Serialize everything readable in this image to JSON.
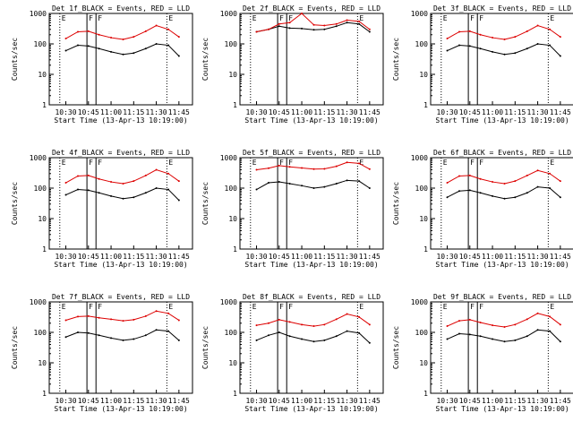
{
  "colors": {
    "events": "#000000",
    "lld": "#dd0000",
    "axis": "#000000",
    "background": "#ffffff"
  },
  "common": {
    "xlabel": "Start Time (13-Apr-13 10:19:00)",
    "ylabel": "Counts/sec",
    "xticks": [
      "10:30",
      "10:45",
      "11:00",
      "11:15",
      "11:30",
      "11:45"
    ],
    "yticks": [
      "1",
      "10",
      "100",
      "1000"
    ],
    "markers": [
      "E",
      "F",
      "F",
      "E"
    ]
  },
  "chart_data": [
    {
      "type": "line",
      "title": "Det 1f_BLACK = Events, RED = LLD",
      "xlabel": "Start Time (13-Apr-13 10:19:00)",
      "ylabel": "Counts/sec",
      "yscale": "log",
      "ylim": [
        1,
        1000
      ],
      "x": [
        "10:30",
        "10:38",
        "10:45",
        "10:52",
        "11:00",
        "11:08",
        "11:15",
        "11:23",
        "11:30",
        "11:38",
        "11:45"
      ],
      "series": [
        {
          "name": "Events",
          "values": [
            60,
            90,
            85,
            70,
            55,
            45,
            50,
            70,
            100,
            90,
            40
          ]
        },
        {
          "name": "LLD",
          "values": [
            150,
            250,
            260,
            200,
            160,
            140,
            170,
            260,
            400,
            300,
            170
          ]
        }
      ]
    },
    {
      "type": "line",
      "title": "Det 2f_BLACK = Events, RED = LLD",
      "xlabel": "Start Time (13-Apr-13 10:19:00)",
      "ylabel": "Counts/sec",
      "yscale": "log",
      "ylim": [
        1,
        1000
      ],
      "x": [
        "10:30",
        "10:38",
        "10:45",
        "10:52",
        "11:00",
        "11:08",
        "11:15",
        "11:23",
        "11:30",
        "11:38",
        "11:45"
      ],
      "series": [
        {
          "name": "Events",
          "values": [
            250,
            300,
            380,
            330,
            320,
            290,
            300,
            380,
            500,
            450,
            250
          ]
        },
        {
          "name": "LLD",
          "values": [
            250,
            300,
            450,
            500,
            1000,
            420,
            400,
            450,
            600,
            550,
            300
          ]
        }
      ]
    },
    {
      "type": "line",
      "title": "Det 3f_BLACK = Events, RED = LLD",
      "xlabel": "Start Time (13-Apr-13 10:19:00)",
      "ylabel": "Counts/sec",
      "yscale": "log",
      "ylim": [
        1,
        1000
      ],
      "x": [
        "10:30",
        "10:38",
        "10:45",
        "10:52",
        "11:00",
        "11:08",
        "11:15",
        "11:23",
        "11:30",
        "11:38",
        "11:45"
      ],
      "series": [
        {
          "name": "Events",
          "values": [
            60,
            90,
            85,
            70,
            55,
            45,
            50,
            70,
            100,
            90,
            40
          ]
        },
        {
          "name": "LLD",
          "values": [
            150,
            250,
            260,
            200,
            160,
            140,
            170,
            260,
            400,
            300,
            170
          ]
        }
      ]
    },
    {
      "type": "line",
      "title": "Det 4f_BLACK = Events, RED = LLD",
      "xlabel": "Start Time (13-Apr-13 10:19:00)",
      "ylabel": "Counts/sec",
      "yscale": "log",
      "ylim": [
        1,
        1000
      ],
      "x": [
        "10:30",
        "10:38",
        "10:45",
        "10:52",
        "11:00",
        "11:08",
        "11:15",
        "11:23",
        "11:30",
        "11:38",
        "11:45"
      ],
      "series": [
        {
          "name": "Events",
          "values": [
            60,
            90,
            85,
            70,
            55,
            45,
            50,
            70,
            100,
            90,
            40
          ]
        },
        {
          "name": "LLD",
          "values": [
            150,
            250,
            260,
            200,
            160,
            140,
            170,
            260,
            400,
            300,
            170
          ]
        }
      ]
    },
    {
      "type": "line",
      "title": "Det 5f_BLACK = Events, RED = LLD",
      "xlabel": "Start Time (13-Apr-13 10:19:00)",
      "ylabel": "Counts/sec",
      "yscale": "log",
      "ylim": [
        1,
        1000
      ],
      "x": [
        "10:30",
        "10:38",
        "10:45",
        "10:52",
        "11:00",
        "11:08",
        "11:15",
        "11:23",
        "11:30",
        "11:38",
        "11:45"
      ],
      "series": [
        {
          "name": "Events",
          "values": [
            90,
            150,
            160,
            140,
            120,
            100,
            110,
            140,
            180,
            170,
            100
          ]
        },
        {
          "name": "LLD",
          "values": [
            400,
            450,
            550,
            500,
            460,
            420,
            430,
            520,
            700,
            650,
            420
          ]
        }
      ]
    },
    {
      "type": "line",
      "title": "Det 6f_BLACK = Events, RED = LLD",
      "xlabel": "Start Time (13-Apr-13 10:19:00)",
      "ylabel": "Counts/sec",
      "yscale": "log",
      "ylim": [
        1,
        1000
      ],
      "x": [
        "10:30",
        "10:38",
        "10:45",
        "10:52",
        "11:00",
        "11:08",
        "11:15",
        "11:23",
        "11:30",
        "11:38",
        "11:45"
      ],
      "series": [
        {
          "name": "Events",
          "values": [
            50,
            80,
            85,
            70,
            55,
            45,
            50,
            70,
            110,
            100,
            50
          ]
        },
        {
          "name": "LLD",
          "values": [
            150,
            250,
            260,
            200,
            160,
            140,
            170,
            260,
            380,
            300,
            170
          ]
        }
      ]
    },
    {
      "type": "line",
      "title": "Det 7f_BLACK = Events, RED = LLD",
      "xlabel": "Start Time (13-Apr-13 10:19:00)",
      "ylabel": "Counts/sec",
      "yscale": "log",
      "ylim": [
        1,
        1000
      ],
      "x": [
        "10:30",
        "10:38",
        "10:45",
        "10:52",
        "11:00",
        "11:08",
        "11:15",
        "11:23",
        "11:30",
        "11:38",
        "11:45"
      ],
      "series": [
        {
          "name": "Events",
          "values": [
            70,
            100,
            95,
            80,
            65,
            55,
            60,
            80,
            120,
            110,
            55
          ]
        },
        {
          "name": "LLD",
          "values": [
            250,
            330,
            340,
            300,
            270,
            240,
            260,
            340,
            500,
            420,
            250
          ]
        }
      ]
    },
    {
      "type": "line",
      "title": "Det 8f_BLACK = Events, RED = LLD",
      "xlabel": "Start Time (13-Apr-13 10:19:00)",
      "ylabel": "Counts/sec",
      "yscale": "log",
      "ylim": [
        1,
        1000
      ],
      "x": [
        "10:30",
        "10:38",
        "10:45",
        "10:52",
        "11:00",
        "11:08",
        "11:15",
        "11:23",
        "11:30",
        "11:38",
        "11:45"
      ],
      "series": [
        {
          "name": "Events",
          "values": [
            55,
            80,
            100,
            75,
            60,
            50,
            55,
            75,
            110,
            95,
            45
          ]
        },
        {
          "name": "LLD",
          "values": [
            170,
            200,
            260,
            220,
            180,
            160,
            180,
            270,
            400,
            320,
            180
          ]
        }
      ]
    },
    {
      "type": "line",
      "title": "Det 9f_BLACK = Events, RED = LLD",
      "xlabel": "Start Time (13-Apr-13 10:19:00)",
      "ylabel": "Counts/sec",
      "yscale": "log",
      "ylim": [
        1,
        1000
      ],
      "x": [
        "10:30",
        "10:38",
        "10:45",
        "10:52",
        "11:00",
        "11:08",
        "11:15",
        "11:23",
        "11:30",
        "11:38",
        "11:45"
      ],
      "series": [
        {
          "name": "Events",
          "values": [
            60,
            90,
            85,
            75,
            60,
            50,
            55,
            75,
            120,
            110,
            50
          ]
        },
        {
          "name": "LLD",
          "values": [
            160,
            240,
            260,
            210,
            170,
            150,
            180,
            270,
            420,
            330,
            180
          ]
        }
      ]
    }
  ]
}
